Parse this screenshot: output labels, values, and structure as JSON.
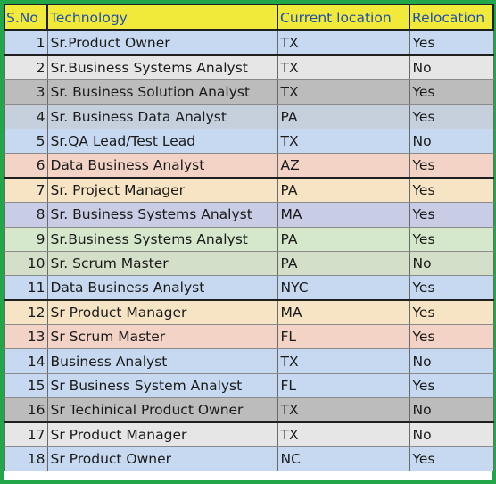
{
  "table": {
    "headers": [
      "S.No",
      "Technology",
      "Current location",
      "Relocation"
    ],
    "rows": [
      {
        "sno": "1",
        "technology": "Sr.Product Owner",
        "location": "TX",
        "relocation": "Yes",
        "bg": "#c6d9f0"
      },
      {
        "sno": "2",
        "technology": "Sr.Business Systems Analyst",
        "location": "TX",
        "relocation": "No",
        "bg": "#e6e6e6"
      },
      {
        "sno": "3",
        "technology": "Sr. Business Solution Analyst",
        "location": "TX",
        "relocation": "Yes",
        "bg": "#bcbcbc"
      },
      {
        "sno": "4",
        "technology": "Sr. Business Data Analyst",
        "location": "PA",
        "relocation": "Yes",
        "bg": "#c5d0dc"
      },
      {
        "sno": "5",
        "technology": "Sr.QA Lead/Test Lead",
        "location": "TX",
        "relocation": "No",
        "bg": "#c6d9f0"
      },
      {
        "sno": "6",
        "technology": "Data Business Analyst",
        "location": "AZ",
        "relocation": "Yes",
        "bg": "#f2d3c5"
      },
      {
        "sno": "7",
        "technology": "Sr. Project Manager",
        "location": "PA",
        "relocation": "Yes",
        "bg": "#f6e4c4"
      },
      {
        "sno": "8",
        "technology": "Sr. Business Systems Analyst",
        "location": "MA",
        "relocation": "Yes",
        "bg": "#c9cce5"
      },
      {
        "sno": "9",
        "technology": "Sr.Business Systems Analyst",
        "location": "PA",
        "relocation": "Yes",
        "bg": "#d6e8cb"
      },
      {
        "sno": "10",
        "technology": "Sr. Scrum Master",
        "location": "PA",
        "relocation": "No",
        "bg": "#d4dfc9"
      },
      {
        "sno": "11",
        "technology": "Data Business Analyst",
        "location": "NYC",
        "relocation": "Yes",
        "bg": "#c6d9f0"
      },
      {
        "sno": "12",
        "technology": "Sr Product Manager",
        "location": "MA",
        "relocation": "Yes",
        "bg": "#f6e4c4"
      },
      {
        "sno": "13",
        "technology": "Sr Scrum Master",
        "location": "FL",
        "relocation": "Yes",
        "bg": "#f2d3c5"
      },
      {
        "sno": "14",
        "technology": "Business Analyst",
        "location": "TX",
        "relocation": "No",
        "bg": "#c6d9f0"
      },
      {
        "sno": "15",
        "technology": "Sr Business System Analyst",
        "location": "FL",
        "relocation": "Yes",
        "bg": "#c6d9f0"
      },
      {
        "sno": "16",
        "technology": "Sr Techinical Product Owner",
        "location": "TX",
        "relocation": "No",
        "bg": "#bcbcbc"
      },
      {
        "sno": "17",
        "technology": "Sr Product Manager",
        "location": "TX",
        "relocation": "No",
        "bg": "#e6e6e6"
      },
      {
        "sno": "18",
        "technology": "Sr Product Owner",
        "location": "NC",
        "relocation": "Yes",
        "bg": "#c6d9f0"
      }
    ]
  },
  "colors": {
    "frame_border": "#22a64a",
    "header_bg": "#f2ea3a",
    "header_text": "#1f4fae"
  }
}
